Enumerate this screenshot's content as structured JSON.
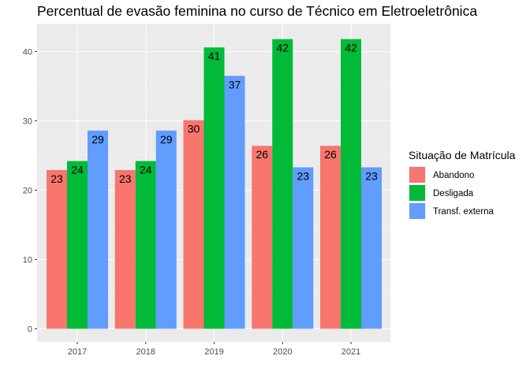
{
  "chart_data": {
    "type": "bar",
    "title": "Percentual de evasão feminina no curso de Técnico em Eletroeletrônica",
    "xlabel": "",
    "ylabel": "",
    "categories": [
      "2017",
      "2018",
      "2019",
      "2020",
      "2021"
    ],
    "ylim": [
      0,
      44
    ],
    "yticks": [
      "0",
      "10",
      "20",
      "30",
      "40"
    ],
    "grid": true,
    "legend": {
      "title": "Situação de Matrícula",
      "placement": "right"
    },
    "series": [
      {
        "name": "Abandono",
        "color": "#F8766D",
        "values": [
          22.9,
          22.9,
          30.1,
          26.4,
          26.4
        ],
        "labels": [
          "23",
          "23",
          "30",
          "26",
          "26"
        ]
      },
      {
        "name": "Desligada",
        "color": "#00BA38",
        "values": [
          24.2,
          24.2,
          40.6,
          41.8,
          41.8
        ],
        "labels": [
          "24",
          "24",
          "41",
          "42",
          "42"
        ]
      },
      {
        "name": "Transf. externa",
        "color": "#619CFF",
        "values": [
          28.6,
          28.6,
          36.5,
          23.3,
          23.3
        ],
        "labels": [
          "29",
          "29",
          "37",
          "23",
          "23"
        ]
      }
    ]
  }
}
